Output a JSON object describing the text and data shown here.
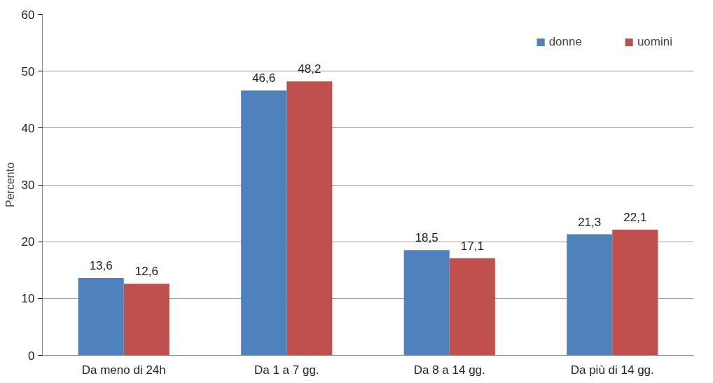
{
  "chart_data": {
    "type": "bar",
    "ylabel": "Percento",
    "categories": [
      "Da meno di 24h",
      "Da 1 a 7 gg.",
      "Da 8 a 14 gg.",
      "Da più di 14 gg."
    ],
    "series": [
      {
        "name": "donne",
        "color": "#4f81bd",
        "values": [
          13.6,
          46.6,
          18.5,
          21.3
        ],
        "value_labels": [
          "13,6",
          "46,6",
          "18,5",
          "21,3"
        ]
      },
      {
        "name": "uomini",
        "color": "#c0504d",
        "values": [
          12.6,
          48.2,
          17.1,
          22.1
        ],
        "value_labels": [
          "12,6",
          "48,2",
          "17,1",
          "22,1"
        ]
      }
    ],
    "ylim": [
      0,
      60
    ],
    "yticks": [
      0,
      10,
      20,
      30,
      40,
      50,
      60
    ],
    "grid": "y",
    "legend": "top right"
  }
}
